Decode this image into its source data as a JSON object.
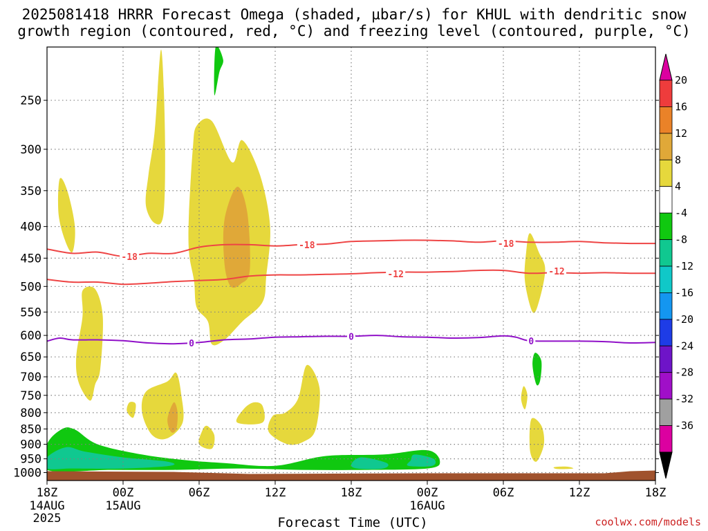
{
  "title": {
    "line1": "2025081418 HRRR Forecast Omega (shaded, µbar/s) for KHUL with dendritic snow",
    "line2": "growth region (contoured, red, °C) and freezing level (contoured, purple, °C)"
  },
  "credit": "coolwx.com/models",
  "colors": {
    "yellow": "#e6d83c",
    "orange_light": "#e0a838",
    "green": "#10c810",
    "teal": "#10c890",
    "ground": "#a0522d",
    "dgz_red": "#ee4444",
    "freezing_purple": "#9010c8",
    "grid": "#808080"
  },
  "chart_data": {
    "type": "heatmap",
    "title": "2025081418 HRRR Forecast Omega (shaded, µbar/s) for KHUL with dendritic snow growth region (contoured, red, °C) and freezing level (contoured, purple, °C)",
    "xlabel": "Forecast Time (UTC)",
    "ylabel": "",
    "x_axis": {
      "range_hours": [
        0,
        48
      ],
      "ticks": [
        {
          "hour": 0,
          "label": "18Z",
          "sub1": "14AUG",
          "sub2": "2025"
        },
        {
          "hour": 6,
          "label": "00Z",
          "sub1": "15AUG",
          "sub2": ""
        },
        {
          "hour": 12,
          "label": "06Z",
          "sub1": "",
          "sub2": ""
        },
        {
          "hour": 18,
          "label": "12Z",
          "sub1": "",
          "sub2": ""
        },
        {
          "hour": 24,
          "label": "18Z",
          "sub1": "",
          "sub2": ""
        },
        {
          "hour": 30,
          "label": "00Z",
          "sub1": "16AUG",
          "sub2": ""
        },
        {
          "hour": 36,
          "label": "06Z",
          "sub1": "",
          "sub2": ""
        },
        {
          "hour": 42,
          "label": "12Z",
          "sub1": "",
          "sub2": ""
        },
        {
          "hour": 48,
          "label": "18Z",
          "sub1": "",
          "sub2": ""
        }
      ]
    },
    "y_axis": {
      "scale": "log-pressure",
      "range_hpa": [
        205,
        1030
      ],
      "ticks": [
        250,
        300,
        350,
        400,
        450,
        500,
        550,
        600,
        650,
        700,
        750,
        800,
        850,
        900,
        950,
        1000
      ]
    },
    "colorbar": {
      "labels": [
        "20",
        "16",
        "12",
        "8",
        "4",
        "-4",
        "-8",
        "-12",
        "-16",
        "-20",
        "-24",
        "-28",
        "-32",
        "-36"
      ],
      "colors": [
        "#f0f0f0",
        "#ee3c3c",
        "#ea8228",
        "#e0a838",
        "#e6d83c",
        "#ffffff",
        "#10c810",
        "#10c890",
        "#10c8c8",
        "#1496f0",
        "#1e3ce6",
        "#6e14c8",
        "#a00fc8",
        "#a0a0a0",
        "#dc00a0",
        "#000000"
      ]
    },
    "series": [
      {
        "name": "dendritic snow growth -18",
        "temp_c": -18,
        "color": "#ee4444",
        "x": [
          0,
          2,
          4,
          6,
          8,
          10,
          12,
          14,
          16,
          18,
          20,
          22,
          24,
          26,
          28,
          30,
          32,
          34,
          36,
          38,
          40,
          42,
          44,
          46,
          48
        ],
        "y": [
          435,
          442,
          440,
          447,
          442,
          442,
          432,
          428,
          428,
          430,
          428,
          427,
          423,
          422,
          421,
          421,
          422,
          424,
          422,
          424,
          424,
          423,
          425,
          426,
          426
        ]
      },
      {
        "name": "dendritic snow growth -12",
        "temp_c": -12,
        "color": "#ee4444",
        "x": [
          0,
          2,
          4,
          6,
          8,
          10,
          12,
          14,
          16,
          18,
          20,
          22,
          24,
          26,
          28,
          30,
          32,
          34,
          36,
          38,
          40,
          42,
          44,
          46,
          48
        ],
        "y": [
          487,
          492,
          492,
          496,
          494,
          491,
          489,
          487,
          481,
          479,
          479,
          478,
          477,
          475,
          474,
          474,
          473,
          471,
          471,
          476,
          475,
          476,
          475,
          476,
          476
        ]
      },
      {
        "name": "freezing level 0",
        "temp_c": 0,
        "color": "#9010c8",
        "x": [
          0,
          1,
          2,
          4,
          6,
          8,
          10,
          12,
          14,
          16,
          18,
          20,
          22,
          24,
          26,
          28,
          30,
          32,
          34,
          36,
          37,
          38,
          40,
          42,
          44,
          46,
          48
        ],
        "y": [
          613,
          606,
          610,
          610,
          612,
          617,
          619,
          616,
          610,
          608,
          604,
          603,
          602,
          602,
          600,
          603,
          604,
          606,
          605,
          601,
          604,
          612,
          613,
          613,
          614,
          617,
          616
        ]
      }
    ],
    "contour_labels": [
      {
        "text": "-18",
        "hour": 6.5,
        "hpa": 447,
        "color": "#ee4444"
      },
      {
        "text": "-18",
        "hour": 20.5,
        "hpa": 428,
        "color": "#ee4444"
      },
      {
        "text": "-18",
        "hour": 36.2,
        "hpa": 426,
        "color": "#ee4444"
      },
      {
        "text": "-12",
        "hour": 27.5,
        "hpa": 477,
        "color": "#ee4444"
      },
      {
        "text": "-12",
        "hour": 40.2,
        "hpa": 472,
        "color": "#ee4444"
      },
      {
        "text": "0",
        "hour": 11.4,
        "hpa": 617,
        "color": "#9010c8"
      },
      {
        "text": "0",
        "hour": 24.0,
        "hpa": 602,
        "color": "#9010c8"
      },
      {
        "text": "0",
        "hour": 38.2,
        "hpa": 612,
        "color": "#9010c8"
      }
    ],
    "shaded_regions": [
      {
        "level": "4 to 8",
        "color": "#e6d83c",
        "points": [
          [
            1.0,
            335
          ],
          [
            1.6,
            350
          ],
          [
            2.2,
            400
          ],
          [
            2.0,
            440
          ],
          [
            1.4,
            420
          ],
          [
            0.9,
            380
          ]
        ]
      },
      {
        "level": "4 to 8",
        "color": "#e6d83c",
        "points": [
          [
            2.8,
            508
          ],
          [
            3.8,
            505
          ],
          [
            4.4,
            560
          ],
          [
            4.2,
            680
          ],
          [
            3.8,
            720
          ],
          [
            3.4,
            765
          ],
          [
            2.5,
            715
          ],
          [
            2.3,
            650
          ],
          [
            2.8,
            560
          ]
        ]
      },
      {
        "level": "4 to 8",
        "color": "#e6d83c",
        "points": [
          [
            9.0,
            207
          ],
          [
            9.3,
            280
          ],
          [
            9.2,
            380
          ],
          [
            8.5,
            395
          ],
          [
            7.8,
            370
          ],
          [
            8.0,
            330
          ],
          [
            8.5,
            280
          ]
        ]
      },
      {
        "level": "4 to 8",
        "color": "#e6d83c",
        "points": [
          [
            11.8,
            275
          ],
          [
            13.0,
            270
          ],
          [
            14.6,
            315
          ],
          [
            15.4,
            290
          ],
          [
            16.8,
            330
          ],
          [
            17.6,
            400
          ],
          [
            17.3,
            480
          ],
          [
            17.0,
            530
          ],
          [
            15.4,
            570
          ],
          [
            14.0,
            610
          ],
          [
            13.0,
            620
          ],
          [
            12.7,
            570
          ],
          [
            11.8,
            540
          ],
          [
            11.6,
            490
          ],
          [
            11.2,
            440
          ],
          [
            11.2,
            380
          ],
          [
            11.5,
            300
          ]
        ]
      },
      {
        "level": "8 to 12",
        "color": "#e0a838",
        "points": [
          [
            15.0,
            345
          ],
          [
            15.8,
            380
          ],
          [
            16.0,
            470
          ],
          [
            15.3,
            495
          ],
          [
            14.5,
            500
          ],
          [
            14.0,
            460
          ],
          [
            14.0,
            390
          ]
        ]
      },
      {
        "level": "4 to 8",
        "color": "#e6d83c",
        "points": [
          [
            6.5,
            770
          ],
          [
            7.0,
            775
          ],
          [
            6.8,
            815
          ],
          [
            6.3,
            795
          ]
        ]
      },
      {
        "level": "4 to 8",
        "color": "#e6d83c",
        "points": [
          [
            9.5,
            712
          ],
          [
            10.2,
            690
          ],
          [
            10.6,
            750
          ],
          [
            10.7,
            830
          ],
          [
            9.5,
            880
          ],
          [
            8.3,
            870
          ],
          [
            7.5,
            800
          ],
          [
            7.8,
            740
          ]
        ]
      },
      {
        "level": "8 to 12",
        "color": "#e0a838",
        "points": [
          [
            10.0,
            770
          ],
          [
            10.3,
            800
          ],
          [
            10.2,
            850
          ],
          [
            9.8,
            860
          ],
          [
            9.5,
            820
          ]
        ]
      },
      {
        "level": "4 to 8",
        "color": "#e6d83c",
        "points": [
          [
            12.6,
            840
          ],
          [
            13.2,
            870
          ],
          [
            13.0,
            915
          ],
          [
            12.0,
            900
          ],
          [
            12.2,
            860
          ]
        ]
      },
      {
        "level": "4 to 8",
        "color": "#e6d83c",
        "points": [
          [
            16.3,
            770
          ],
          [
            17.0,
            780
          ],
          [
            17.0,
            830
          ],
          [
            15.0,
            830
          ],
          [
            15.5,
            790
          ]
        ]
      },
      {
        "level": "4 to 8",
        "color": "#e6d83c",
        "points": [
          [
            20.5,
            670
          ],
          [
            21.5,
            730
          ],
          [
            21.2,
            850
          ],
          [
            20.3,
            890
          ],
          [
            19.0,
            900
          ],
          [
            17.5,
            860
          ],
          [
            17.8,
            810
          ],
          [
            18.8,
            800
          ],
          [
            19.8,
            760
          ]
        ]
      },
      {
        "level": "4 to 8",
        "color": "#e6d83c",
        "points": [
          [
            38.1,
            410
          ],
          [
            38.8,
            440
          ],
          [
            39.3,
            470
          ],
          [
            38.8,
            530
          ],
          [
            38.3,
            550
          ],
          [
            37.7,
            490
          ],
          [
            37.8,
            440
          ]
        ]
      },
      {
        "level": "4 to 8",
        "color": "#e6d83c",
        "points": [
          [
            37.6,
            725
          ],
          [
            37.9,
            750
          ],
          [
            37.7,
            790
          ],
          [
            37.4,
            760
          ]
        ]
      },
      {
        "level": "4 to 8",
        "color": "#e6d83c",
        "points": [
          [
            38.2,
            820
          ],
          [
            39.0,
            840
          ],
          [
            39.2,
            900
          ],
          [
            38.6,
            960
          ],
          [
            38.1,
            920
          ]
        ]
      },
      {
        "level": "-4 to -8",
        "color": "#10c810",
        "points": [
          [
            13.3,
            205
          ],
          [
            13.9,
            215
          ],
          [
            13.6,
            225
          ],
          [
            13.2,
            245
          ]
        ]
      },
      {
        "level": "-4 to -8",
        "color": "#10c810",
        "points": [
          [
            38.5,
            640
          ],
          [
            39.0,
            660
          ],
          [
            38.9,
            710
          ],
          [
            38.6,
            720
          ],
          [
            38.3,
            670
          ]
        ]
      },
      {
        "level": "-4 to -8",
        "color": "#10c810",
        "points": [
          [
            0,
            900
          ],
          [
            1.2,
            850
          ],
          [
            2.2,
            852
          ],
          [
            4.0,
            900
          ],
          [
            7.5,
            935
          ],
          [
            11.0,
            955
          ],
          [
            14.0,
            965
          ],
          [
            18.0,
            975
          ],
          [
            22.0,
            940
          ],
          [
            26.5,
            935
          ],
          [
            30.0,
            920
          ],
          [
            31.0,
            960
          ],
          [
            30.0,
            985
          ],
          [
            25.0,
            990
          ],
          [
            20.0,
            990
          ],
          [
            15.0,
            985
          ],
          [
            10.0,
            990
          ],
          [
            5.0,
            990
          ],
          [
            0,
            990
          ]
        ]
      },
      {
        "level": "-8 to -12",
        "color": "#10c890",
        "points": [
          [
            0,
            945
          ],
          [
            1.5,
            910
          ],
          [
            3.0,
            925
          ],
          [
            6.0,
            945
          ],
          [
            9.5,
            960
          ],
          [
            9.7,
            975
          ],
          [
            6.0,
            985
          ],
          [
            2.0,
            985
          ],
          [
            0,
            985
          ]
        ]
      },
      {
        "level": "-8 to -12",
        "color": "#10c890",
        "points": [
          [
            24.8,
            945
          ],
          [
            26.8,
            965
          ],
          [
            26.5,
            985
          ],
          [
            24.5,
            985
          ],
          [
            24.0,
            970
          ]
        ]
      },
      {
        "level": "-8 to -12",
        "color": "#10c890",
        "points": [
          [
            29.0,
            935
          ],
          [
            30.5,
            950
          ],
          [
            30.4,
            975
          ],
          [
            28.5,
            975
          ],
          [
            28.7,
            955
          ]
        ]
      },
      {
        "level": "4 to 8",
        "color": "#e6d83c",
        "points": [
          [
            40.0,
            980
          ],
          [
            41.0,
            978
          ],
          [
            41.5,
            985
          ],
          [
            40.3,
            987
          ]
        ]
      }
    ],
    "terrain": {
      "label": "ground",
      "color": "#a0522d",
      "top_hpa": 1000
    }
  }
}
